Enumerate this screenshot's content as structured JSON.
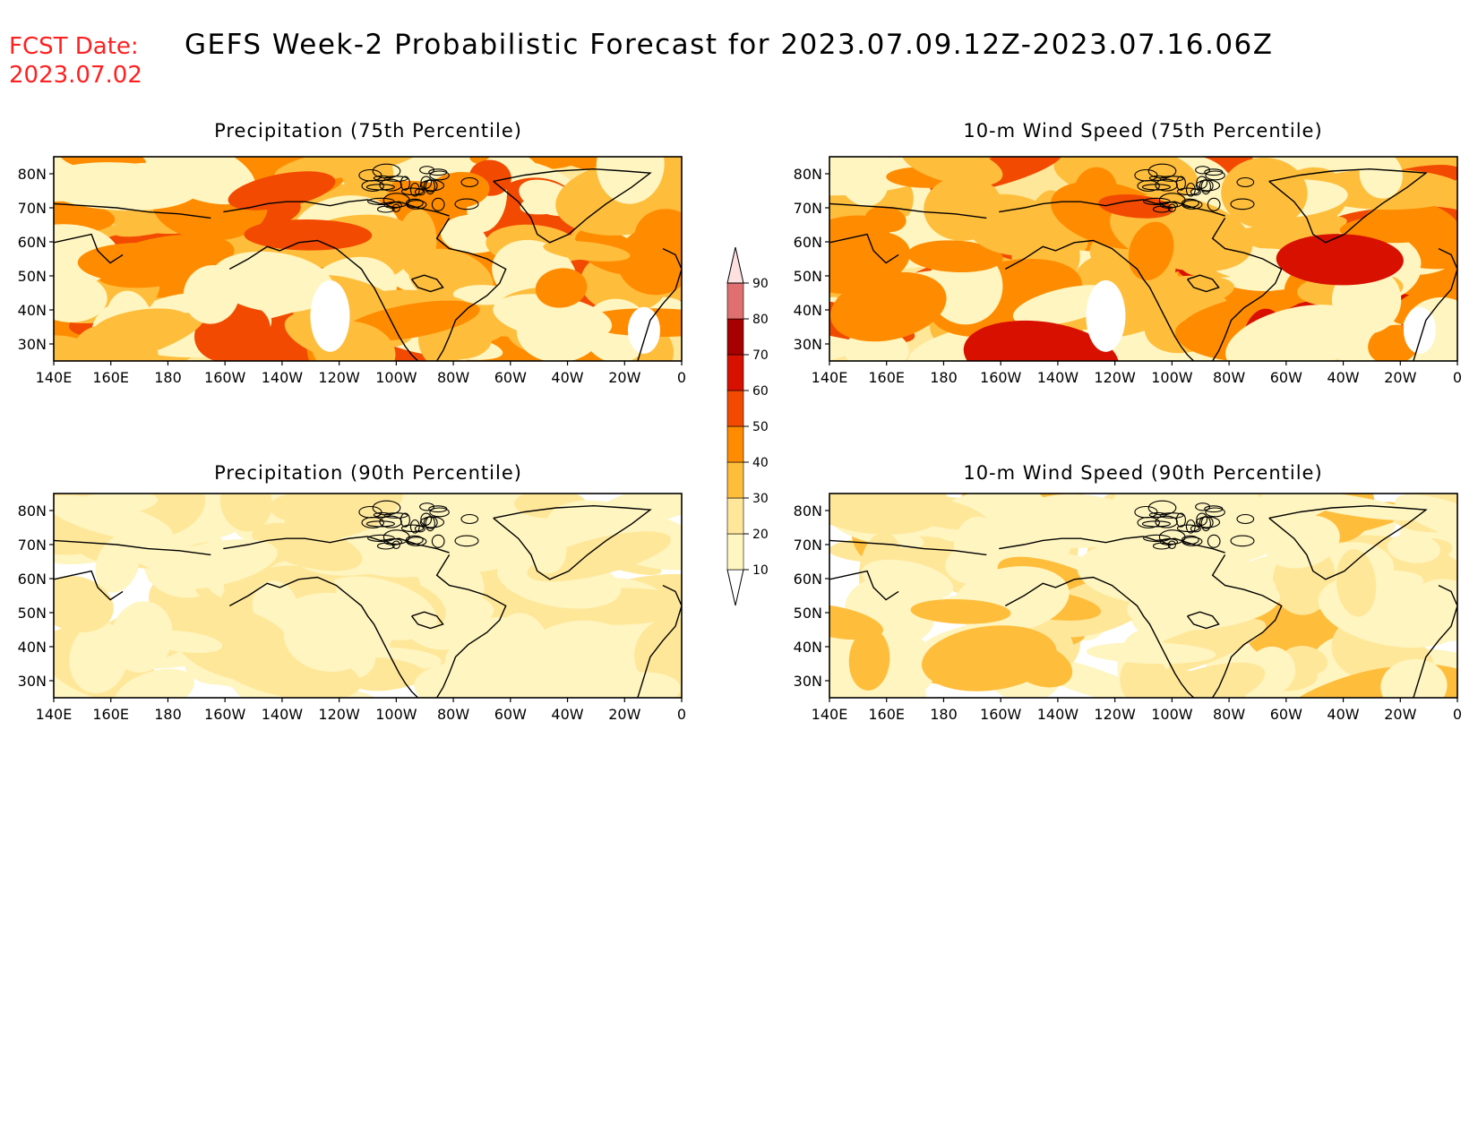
{
  "header": {
    "fcst_label": "FCST Date:",
    "fcst_date": "2023.07.02",
    "title": "GEFS Week-2 Probabilistic Forecast for 2023.07.09.12Z-2023.07.16.06Z"
  },
  "colors": {
    "fcst_text": "#ff2020",
    "title_text": "#000000"
  },
  "axes": {
    "lon_ticks": [
      "140E",
      "160E",
      "180",
      "160W",
      "140W",
      "120W",
      "100W",
      "80W",
      "60W",
      "40W",
      "20W",
      "0"
    ],
    "lat_ticks": [
      "30N",
      "40N",
      "50N",
      "60N",
      "70N",
      "80N"
    ]
  },
  "colorbar": {
    "levels": [
      "10",
      "20",
      "30",
      "40",
      "50",
      "60",
      "70",
      "80",
      "90"
    ],
    "colors": [
      "#fff5c0",
      "#ffe79a",
      "#ffbd3c",
      "#ff8c00",
      "#f24a00",
      "#d81000",
      "#a60000",
      "#e07070",
      "#f4a9a9",
      "#fde0e0"
    ]
  },
  "panels": [
    {
      "id": "precip-75",
      "title": "Precipitation (75th Percentile)",
      "intensity": 3
    },
    {
      "id": "wind-75",
      "title": "10-m Wind Speed (75th Percentile)",
      "intensity": 4
    },
    {
      "id": "precip-90",
      "title": "Precipitation (90th Percentile)",
      "intensity": 1
    },
    {
      "id": "wind-90",
      "title": "10-m Wind Speed (90th Percentile)",
      "intensity": 1.4
    }
  ]
}
